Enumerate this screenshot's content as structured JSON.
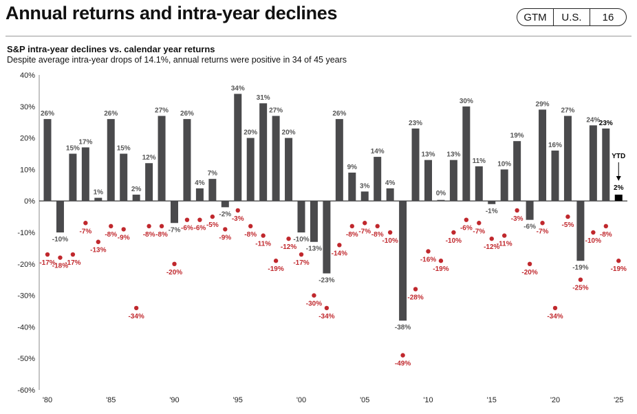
{
  "header": {
    "title": "Annual returns and intra-year declines",
    "badges": [
      "GTM",
      "U.S.",
      "16"
    ]
  },
  "chart_data": {
    "type": "bar",
    "title": "S&P intra-year declines vs. calendar year returns",
    "subtitle": "Despite average intra-year drops of 14.1%, annual returns were positive in 34 of 45 years",
    "ylim": [
      -60,
      40
    ],
    "y_ticks": [
      "40%",
      "30%",
      "20%",
      "10%",
      "0%",
      "-10%",
      "-20%",
      "-30%",
      "-40%",
      "-50%",
      "-60%"
    ],
    "x_ticks": [
      "'80",
      "'85",
      "'90",
      "'95",
      "'00",
      "'05",
      "'10",
      "'15",
      "'20",
      "'25"
    ],
    "x": [
      1980,
      1981,
      1982,
      1983,
      1984,
      1985,
      1986,
      1987,
      1988,
      1989,
      1990,
      1991,
      1992,
      1993,
      1994,
      1995,
      1996,
      1997,
      1998,
      1999,
      2000,
      2001,
      2002,
      2003,
      2004,
      2005,
      2006,
      2007,
      2008,
      2009,
      2010,
      2011,
      2012,
      2013,
      2014,
      2015,
      2016,
      2017,
      2018,
      2019,
      2020,
      2021,
      2022,
      2023,
      2024,
      2025
    ],
    "series": [
      {
        "kind": "bar",
        "color": "#4a4a4c",
        "values": [
          26,
          -10,
          15,
          17,
          1,
          26,
          15,
          2,
          12,
          27,
          -7,
          26,
          4,
          7,
          -2,
          34,
          20,
          31,
          27,
          20,
          -10,
          -13,
          -23,
          26,
          9,
          3,
          14,
          4,
          -38,
          23,
          13,
          0,
          13,
          30,
          11,
          -1,
          10,
          19,
          -6,
          29,
          16,
          27,
          -19,
          24,
          23,
          2
        ],
        "labels": [
          "26%",
          "-10%",
          "15%",
          "17%",
          "1%",
          "26%",
          "15%",
          "2%",
          "12%",
          "27%",
          "-7%",
          "26%",
          "4%",
          "7%",
          "-2%",
          "34%",
          "20%",
          "31%",
          "27%",
          "20%",
          "-10%",
          "-13%",
          "-23%",
          "26%",
          "9%",
          "3%",
          "14%",
          "4%",
          "-38%",
          "23%",
          "13%",
          "0%",
          "13%",
          "30%",
          "11%",
          "-1%",
          "10%",
          "19%",
          "-6%",
          "29%",
          "16%",
          "27%",
          "-19%",
          "24%",
          "23%",
          "2%"
        ]
      },
      {
        "kind": "dot",
        "color": "#c0282d",
        "values": [
          -17,
          -18,
          -17,
          -7,
          -13,
          -8,
          -9,
          -34,
          -8,
          -8,
          -20,
          -6,
          -6,
          -5,
          -9,
          -3,
          -8,
          -11,
          -19,
          -12,
          -17,
          -30,
          -34,
          -14,
          -8,
          -7,
          -8,
          -10,
          -49,
          -28,
          -16,
          -19,
          -10,
          -6,
          -7,
          -12,
          -11,
          -3,
          -20,
          -7,
          -34,
          -5,
          -25,
          -10,
          -8,
          -19
        ],
        "labels": [
          "-17%",
          "-18%",
          "-17%",
          "-7%",
          "-13%",
          "-8%",
          "-9%",
          "-34%",
          "-8%",
          "-8%",
          "-20%",
          "-6%",
          "-6%",
          "-5%",
          "-9%",
          "-3%",
          "-8%",
          "-11%",
          "-19%",
          "-12%",
          "-17%",
          "-30%",
          "-34%",
          "-14%",
          "-8%",
          "-7%",
          "-8%",
          "-10%",
          "-49%",
          "-28%",
          "-16%",
          "-19%",
          "-10%",
          "-6%",
          "-7%",
          "-12%",
          "-11%",
          "-3%",
          "-20%",
          "-7%",
          "-34%",
          "-5%",
          "-25%",
          "-10%",
          "-8%",
          "-19%"
        ]
      }
    ],
    "highlight_bar_index": 44,
    "ytd_bar_index": 45,
    "ytd_bar_color": "#000000",
    "annotation": "YTD",
    "grid": false
  }
}
